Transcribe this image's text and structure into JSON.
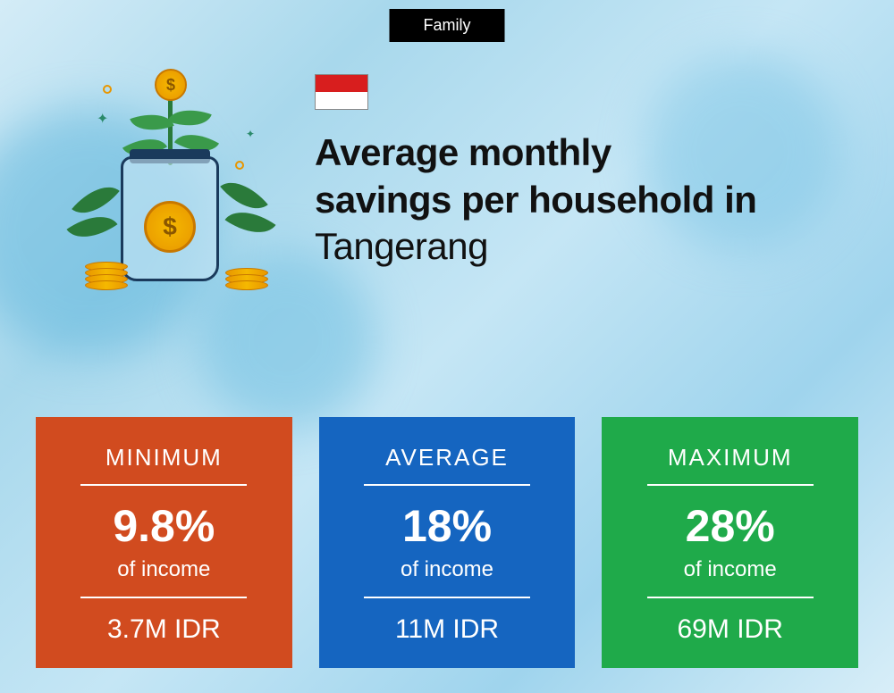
{
  "tag": "Family",
  "flag": {
    "top_color": "#d81e1e",
    "bottom_color": "#ffffff"
  },
  "title_line1": "Average monthly",
  "title_line2": "savings per household in",
  "city": "Tangerang",
  "cards": [
    {
      "label": "MINIMUM",
      "percent": "9.8%",
      "sub": "of income",
      "amount": "3.7M IDR",
      "bg_color": "#d14b1f"
    },
    {
      "label": "AVERAGE",
      "percent": "18%",
      "sub": "of income",
      "amount": "11M IDR",
      "bg_color": "#1565c0"
    },
    {
      "label": "MAXIMUM",
      "percent": "28%",
      "sub": "of income",
      "amount": "69M IDR",
      "bg_color": "#1faa4a"
    }
  ],
  "styling": {
    "background_gradient": [
      "#d4ecf7",
      "#a8d8ec",
      "#c5e6f5",
      "#9fd4ed",
      "#d8eef8"
    ],
    "title_fontsize": 42,
    "title_fontweight": 800,
    "card_label_fontsize": 26,
    "card_percent_fontsize": 50,
    "card_sub_fontsize": 24,
    "card_amount_fontsize": 30,
    "card_text_color": "#ffffff",
    "divider_color": "#ffffff",
    "tag_bg": "#000000",
    "tag_color": "#ffffff",
    "illustration_colors": {
      "jar_outline": "#1a3a5c",
      "coin": "#f5b800",
      "coin_border": "#c87800",
      "leaf": "#3a9a4a",
      "stem": "#2a7a3a"
    }
  }
}
